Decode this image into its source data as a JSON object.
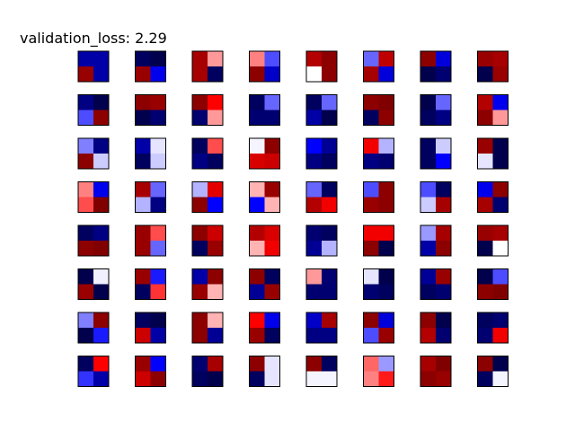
{
  "chart_data": {
    "type": "heatmap",
    "title": "validation_loss: 2.29",
    "grid_rows": 8,
    "grid_cols": 8,
    "cell_shape": [
      2,
      2
    ],
    "colormap": "seismic",
    "value_range": [
      -1,
      1
    ],
    "axes_ticks": false,
    "cells": [
      [
        [
          [
            -0.75,
            -0.75
          ],
          [
            0.9,
            -0.75
          ]
        ],
        [
          [
            -0.95,
            -1.0
          ],
          [
            0.9,
            -0.55
          ]
        ],
        [
          [
            0.85,
            0.2
          ],
          [
            0.85,
            -0.95
          ]
        ],
        [
          [
            0.25,
            -0.35
          ],
          [
            0.95,
            -0.65
          ]
        ],
        [
          [
            0.8,
            0.95
          ],
          [
            0.0,
            0.95
          ]
        ],
        [
          [
            -0.3,
            0.75
          ],
          [
            0.85,
            -0.6
          ]
        ],
        [
          [
            0.95,
            -0.6
          ],
          [
            -1.0,
            -0.9
          ]
        ],
        [
          [
            0.9,
            0.85
          ],
          [
            -1.0,
            0.9
          ]
        ]
      ],
      [
        [
          [
            -0.85,
            -1.0
          ],
          [
            -0.35,
            0.95
          ]
        ],
        [
          [
            0.95,
            0.9
          ],
          [
            -1.0,
            -0.9
          ]
        ],
        [
          [
            0.95,
            0.5
          ],
          [
            -0.9,
            0.2
          ]
        ],
        [
          [
            -0.95,
            -0.3
          ],
          [
            -0.9,
            -0.9
          ]
        ],
        [
          [
            -0.95,
            -0.3
          ],
          [
            -0.75,
            -1.0
          ]
        ],
        [
          [
            0.95,
            1.0
          ],
          [
            -0.95,
            0.95
          ]
        ],
        [
          [
            -1.0,
            -0.3
          ],
          [
            -0.95,
            -0.85
          ]
        ],
        [
          [
            0.8,
            -0.55
          ],
          [
            0.95,
            0.2
          ]
        ]
      ],
      [
        [
          [
            -0.25,
            -0.85
          ],
          [
            0.95,
            -0.1
          ]
        ],
        [
          [
            -0.75,
            -0.05
          ],
          [
            -0.95,
            -0.1
          ]
        ],
        [
          [
            -0.95,
            0.35
          ],
          [
            -0.85,
            -0.95
          ]
        ],
        [
          [
            -0.02,
            0.95
          ],
          [
            0.65,
            0.7
          ]
        ],
        [
          [
            -0.5,
            -0.8
          ],
          [
            -0.85,
            -0.95
          ]
        ],
        [
          [
            0.55,
            -0.15
          ],
          [
            -0.85,
            -0.9
          ]
        ],
        [
          [
            -0.95,
            -0.1
          ],
          [
            -0.95,
            -0.5
          ]
        ],
        [
          [
            0.9,
            -1.0
          ],
          [
            -0.05,
            -1.0
          ]
        ]
      ],
      [
        [
          [
            0.25,
            -0.55
          ],
          [
            0.35,
            1.0
          ]
        ],
        [
          [
            0.85,
            -0.3
          ],
          [
            -0.15,
            -0.85
          ]
        ],
        [
          [
            -0.15,
            0.6
          ],
          [
            0.95,
            -0.5
          ]
        ],
        [
          [
            0.15,
            0.9
          ],
          [
            -0.5,
            0.15
          ]
        ],
        [
          [
            -0.3,
            -0.95
          ],
          [
            0.8,
            0.55
          ]
        ],
        [
          [
            -0.35,
            0.95
          ],
          [
            0.9,
            0.95
          ]
        ],
        [
          [
            -0.35,
            -0.95
          ],
          [
            -0.1,
            0.85
          ]
        ],
        [
          [
            -0.55,
            0.95
          ],
          [
            0.85,
            -0.9
          ]
        ]
      ],
      [
        [
          [
            -0.95,
            -0.85
          ],
          [
            0.95,
            1.0
          ]
        ],
        [
          [
            0.9,
            0.35
          ],
          [
            0.9,
            -0.3
          ]
        ],
        [
          [
            0.95,
            0.7
          ],
          [
            -0.95,
            0.9
          ]
        ],
        [
          [
            0.8,
            0.65
          ],
          [
            0.15,
            0.55
          ]
        ],
        [
          [
            -0.9,
            -0.95
          ],
          [
            -0.8,
            -0.15
          ]
        ],
        [
          [
            0.55,
            0.55
          ],
          [
            0.95,
            -1.0
          ]
        ],
        [
          [
            -0.2,
            0.85
          ],
          [
            -0.75,
            0.95
          ]
        ],
        [
          [
            0.9,
            0.85
          ],
          [
            -1.0,
            0.0
          ]
        ]
      ],
      [
        [
          [
            -1.0,
            -0.03
          ],
          [
            0.9,
            -1.0
          ]
        ],
        [
          [
            0.9,
            -0.45
          ],
          [
            -0.95,
            0.4
          ]
        ],
        [
          [
            -0.75,
            0.95
          ],
          [
            0.9,
            0.15
          ]
        ],
        [
          [
            0.95,
            -0.95
          ],
          [
            -0.8,
            0.9
          ]
        ],
        [
          [
            0.2,
            -0.9
          ],
          [
            -0.9,
            -0.9
          ]
        ],
        [
          [
            -0.05,
            -1.0
          ],
          [
            -0.9,
            -0.95
          ]
        ],
        [
          [
            -0.8,
            0.9
          ],
          [
            -0.95,
            -0.9
          ]
        ],
        [
          [
            -1.0,
            -0.35
          ],
          [
            0.95,
            1.0
          ]
        ]
      ],
      [
        [
          [
            -0.25,
            0.95
          ],
          [
            -1.0,
            -0.45
          ]
        ],
        [
          [
            -0.95,
            -1.0
          ],
          [
            0.7,
            -0.75
          ]
        ],
        [
          [
            0.95,
            0.15
          ],
          [
            0.95,
            -0.8
          ]
        ],
        [
          [
            0.5,
            -0.55
          ],
          [
            0.9,
            -0.95
          ]
        ],
        [
          [
            -0.65,
            0.85
          ],
          [
            -0.85,
            -0.85
          ]
        ],
        [
          [
            0.95,
            -0.6
          ],
          [
            -0.35,
            0.9
          ]
        ],
        [
          [
            0.95,
            -1.0
          ],
          [
            0.8,
            -0.9
          ]
        ],
        [
          [
            -0.95,
            -0.9
          ],
          [
            -0.9,
            0.55
          ]
        ]
      ],
      [
        [
          [
            -0.95,
            0.5
          ],
          [
            -0.4,
            -0.75
          ]
        ],
        [
          [
            0.9,
            -0.5
          ],
          [
            0.7,
            0.95
          ]
        ],
        [
          [
            -0.9,
            0.85
          ],
          [
            -0.95,
            -1.0
          ]
        ],
        [
          [
            0.95,
            -0.05
          ],
          [
            -0.95,
            -0.05
          ]
        ],
        [
          [
            0.95,
            -0.95
          ],
          [
            -0.02,
            -0.02
          ]
        ],
        [
          [
            0.3,
            -0.2
          ],
          [
            0.25,
            0.45
          ]
        ],
        [
          [
            0.85,
            1.0
          ],
          [
            0.95,
            0.9
          ]
        ],
        [
          [
            0.95,
            -1.0
          ],
          [
            -0.95,
            -0.02
          ]
        ]
      ]
    ]
  }
}
